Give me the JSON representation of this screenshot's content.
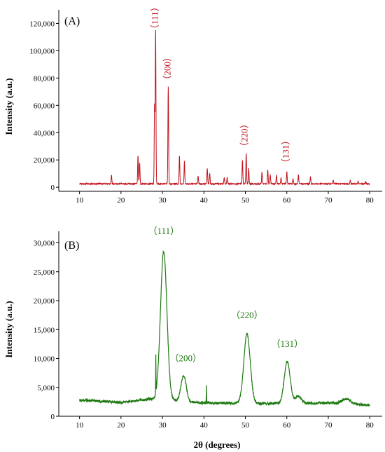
{
  "colors": {
    "panel_A": "#c0111b",
    "panel_B": "#1f7a12",
    "axis": "#000000"
  },
  "chart_data": [
    {
      "type": "line",
      "panel_label": "(A)",
      "xlabel": "",
      "ylabel": "Intensity (a.u.)",
      "xlim": [
        5,
        83
      ],
      "ylim": [
        -3000,
        130000
      ],
      "x_ticks": [
        10,
        20,
        30,
        40,
        50,
        60,
        70,
        80
      ],
      "x_tick_labels": [
        "10",
        "20",
        "30",
        "40",
        "50",
        "60",
        "70",
        "80"
      ],
      "y_ticks": [
        0,
        20000,
        40000,
        60000,
        80000,
        100000,
        120000
      ],
      "y_tick_labels": [
        "0",
        "20,000",
        "40,000",
        "60,000",
        "80,000",
        "100,000",
        "120,000"
      ],
      "baseline": 2500,
      "peaks": [
        {
          "x": 17.7,
          "y": 9000
        },
        {
          "x": 24.1,
          "y": 23000
        },
        {
          "x": 24.5,
          "y": 18000
        },
        {
          "x": 28.1,
          "y": 60000
        },
        {
          "x": 28.35,
          "y": 115500
        },
        {
          "x": 31.4,
          "y": 74000
        },
        {
          "x": 34.1,
          "y": 23000
        },
        {
          "x": 35.3,
          "y": 19000
        },
        {
          "x": 38.6,
          "y": 8000
        },
        {
          "x": 40.8,
          "y": 14000
        },
        {
          "x": 41.4,
          "y": 10000
        },
        {
          "x": 44.9,
          "y": 7000
        },
        {
          "x": 45.6,
          "y": 7000
        },
        {
          "x": 49.3,
          "y": 19500
        },
        {
          "x": 50.2,
          "y": 25000
        },
        {
          "x": 50.8,
          "y": 14000
        },
        {
          "x": 54.0,
          "y": 11000
        },
        {
          "x": 55.4,
          "y": 13000
        },
        {
          "x": 56.0,
          "y": 9000
        },
        {
          "x": 57.5,
          "y": 9000
        },
        {
          "x": 58.6,
          "y": 7000
        },
        {
          "x": 60.0,
          "y": 11500
        },
        {
          "x": 61.5,
          "y": 6000
        },
        {
          "x": 62.8,
          "y": 9000
        },
        {
          "x": 65.7,
          "y": 7500
        },
        {
          "x": 71.2,
          "y": 5500
        },
        {
          "x": 75.3,
          "y": 5000
        },
        {
          "x": 77.2,
          "y": 4000
        },
        {
          "x": 79.0,
          "y": 4000
        }
      ],
      "annotations": [
        {
          "text": "（111）",
          "x": 28.35,
          "y": 124000
        },
        {
          "text": "（200）",
          "x": 31.4,
          "y": 87000
        },
        {
          "text": "（220）",
          "x": 50.0,
          "y": 38000
        },
        {
          "text": "（131）",
          "x": 60.0,
          "y": 26000
        }
      ]
    },
    {
      "type": "line",
      "panel_label": "(B)",
      "xlabel": "2θ (degrees)",
      "ylabel": "Intensity (a.u.)",
      "xlim": [
        5,
        83
      ],
      "ylim": [
        0,
        32000
      ],
      "x_ticks": [
        10,
        20,
        30,
        40,
        50,
        60,
        70,
        80
      ],
      "x_tick_labels": [
        "10",
        "20",
        "30",
        "40",
        "50",
        "60",
        "70",
        "80"
      ],
      "y_ticks": [
        0,
        5000,
        10000,
        15000,
        20000,
        25000,
        30000
      ],
      "y_tick_labels": [
        "0",
        "5,000",
        "10,000",
        "15,000",
        "20,000",
        "25,000",
        "30,000"
      ],
      "baseline_points": [
        [
          10,
          2800
        ],
        [
          20,
          2400
        ],
        [
          27,
          3000
        ],
        [
          40,
          2300
        ],
        [
          55,
          2200
        ],
        [
          70,
          2300
        ],
        [
          80,
          1900
        ]
      ],
      "peaks": [
        {
          "x": 30.3,
          "y": 28500,
          "width": 1.1
        },
        {
          "x": 35.1,
          "y": 7000,
          "width": 0.9
        },
        {
          "x": 50.4,
          "y": 14200,
          "width": 1.1
        },
        {
          "x": 60.1,
          "y": 9500,
          "width": 1.0
        },
        {
          "x": 62.8,
          "y": 3500,
          "width": 1.0
        },
        {
          "x": 74.3,
          "y": 3000,
          "width": 1.5
        }
      ],
      "spikes": [
        {
          "x": 28.4,
          "y": 9200
        },
        {
          "x": 40.6,
          "y": 5200
        }
      ],
      "annotations": [
        {
          "text": "（111）",
          "x": 30.3,
          "y": 31500
        },
        {
          "text": "（200）",
          "x": 35.6,
          "y": 9500
        },
        {
          "text": "（220）",
          "x": 50.4,
          "y": 17000
        },
        {
          "text": "（131）",
          "x": 60.1,
          "y": 12000
        }
      ]
    }
  ]
}
